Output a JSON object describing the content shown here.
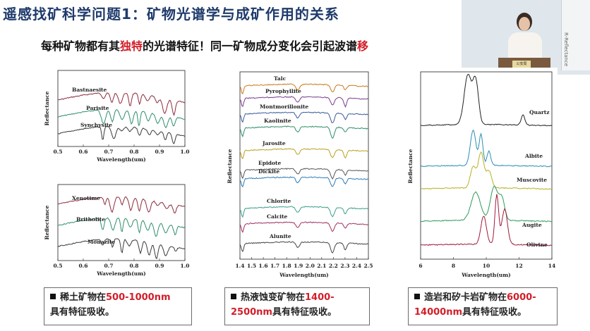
{
  "slide": {
    "title": "遥感找矿科学问题1：矿物光谱学与成矿作用的关系",
    "subtitle_prefix": "每种矿物都有其",
    "subtitle_highlight": "独特",
    "subtitle_middle": "的光谱特征！同一矿物成分变化会引起波谱",
    "subtitle_highlight_end": "移"
  },
  "video": {
    "wall_text": "R-Reflectance",
    "podium_text": "公安局"
  },
  "panels": [
    {
      "ylabel": "Reflectance",
      "xlabel": "Wavelength(um)",
      "ticks": [
        "0.5",
        "0.6",
        "0.7",
        "0.8",
        "0.9",
        "1.0"
      ],
      "series": [
        "Bastnaesite",
        "Parisite",
        "Synchysite"
      ],
      "colors": [
        "#8b2b3a",
        "#2f8f6a",
        "#3a3a3a"
      ]
    },
    {
      "ylabel": "Reflectance",
      "xlabel": "Wavelength(um)",
      "ticks": [
        "0.5",
        "0.6",
        "0.7",
        "0.8",
        "0.9",
        "1.0"
      ],
      "series": [
        "Xenotime",
        "Britholite",
        "Monazite"
      ],
      "colors": [
        "#8b2b3a",
        "#2f8f6a",
        "#3a3a3a"
      ]
    },
    {
      "ylabel": "Reflectance",
      "xlabel": "Wavelength(um)",
      "ticks": [
        "1.4",
        "1.5",
        "1.6",
        "1.7",
        "1.8",
        "1.9",
        "2.0",
        "2.1",
        "2.2",
        "2.3",
        "2.4",
        "2.5"
      ],
      "series": [
        "Talc",
        "Pyrophyllite",
        "Montmorillonite",
        "Kaolinite",
        "Jarosite",
        "Epidote",
        "Dickite",
        "Chlorite",
        "Calcite",
        "Alunite"
      ],
      "colors": [
        "#c97a1a",
        "#7a3b8f",
        "#3a5a9a",
        "#2f8f6a",
        "#b8a020",
        "#555555",
        "#2a7ab8",
        "#3aa08a",
        "#a03060",
        "#444444"
      ]
    },
    {
      "ylabel": "Reflectance",
      "xlabel": "Wavelength(um)",
      "ticks": [
        "6",
        "8",
        "10",
        "12",
        "14"
      ],
      "series": [
        "Quartz",
        "Albite",
        "Muscovite",
        "Augite",
        "Olivine"
      ],
      "colors": [
        "#222222",
        "#2a8fb0",
        "#b8b020",
        "#2f9a5a",
        "#a01a3a"
      ]
    }
  ],
  "notes": [
    {
      "pre": "稀土矿物在",
      "red": "500-1000nm",
      "post": "具有特征吸收。"
    },
    {
      "pre": "热液蚀变矿物在",
      "red": "1400-2500nm",
      "post": "具有特征吸收。"
    },
    {
      "pre": "造岩和矽卡岩矿物在",
      "red": "6000-14000nm",
      "post": "具有特征吸收。"
    }
  ]
}
